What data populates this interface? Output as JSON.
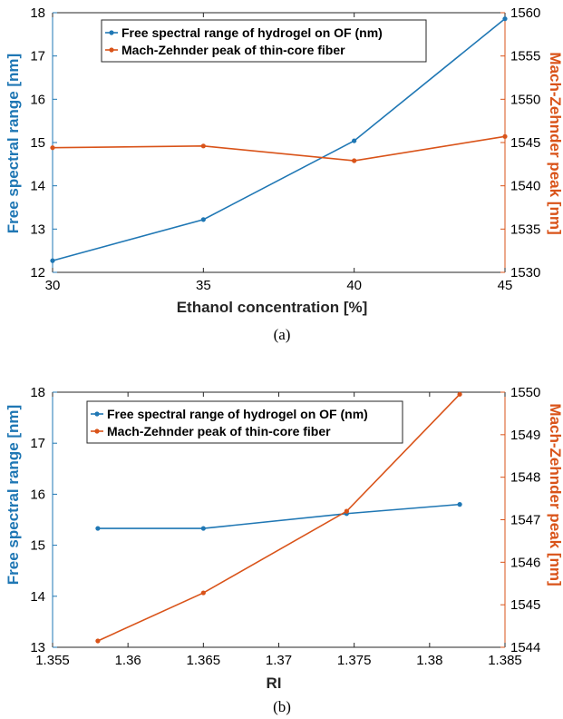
{
  "colors": {
    "blue": "#1f77b4",
    "orange": "#d95319",
    "axis": "#262626"
  },
  "chart_data": [
    {
      "type": "line",
      "caption": "(a)",
      "xlabel": "Ethanol concentration [%]",
      "ylabel_left": "Free spectral range [nm]",
      "ylabel_right": "Mach-Zehnder peak [nm]",
      "xlim": [
        30,
        45
      ],
      "ylim_left": [
        12,
        18
      ],
      "ylim_right": [
        1530,
        1560
      ],
      "x_ticks": [
        "30",
        "35",
        "40",
        "45"
      ],
      "y_ticks_left": [
        "12",
        "13",
        "14",
        "15",
        "16",
        "17",
        "18"
      ],
      "y_ticks_right": [
        "1530",
        "1535",
        "1540",
        "1545",
        "1550",
        "1555",
        "1560"
      ],
      "grid": false,
      "legend_position": "top",
      "series": [
        {
          "name": "Free spectral range of hydrogel on OF (nm)",
          "axis": "left",
          "color": "#1f77b4",
          "x": [
            30,
            35,
            40,
            45
          ],
          "y": [
            12.27,
            13.22,
            15.04,
            17.86
          ]
        },
        {
          "name": "Mach-Zehnder peak of thin-core fiber",
          "axis": "right",
          "color": "#d95319",
          "x": [
            30,
            35,
            40,
            45
          ],
          "y": [
            1544.4,
            1544.6,
            1542.9,
            1545.7
          ]
        }
      ]
    },
    {
      "type": "line",
      "caption": "(b)",
      "xlabel": "RI",
      "ylabel_left": "Free spectral range [nm]",
      "ylabel_right": "Mach-Zehnder peak [nm]",
      "xlim": [
        1.355,
        1.385
      ],
      "ylim_left": [
        13,
        18
      ],
      "ylim_right": [
        1544,
        1550
      ],
      "x_ticks": [
        "1.355",
        "1.36",
        "1.365",
        "1.37",
        "1.375",
        "1.38",
        "1.385"
      ],
      "y_ticks_left": [
        "13",
        "14",
        "15",
        "16",
        "17",
        "18"
      ],
      "y_ticks_right": [
        "1544",
        "1545",
        "1546",
        "1547",
        "1548",
        "1549",
        "1550"
      ],
      "grid": false,
      "legend_position": "top",
      "series": [
        {
          "name": "Free spectral range of hydrogel on OF (nm)",
          "axis": "left",
          "color": "#1f77b4",
          "x": [
            1.358,
            1.365,
            1.3745,
            1.382
          ],
          "y": [
            15.33,
            15.33,
            15.62,
            15.8
          ]
        },
        {
          "name": "Mach-Zehnder peak of thin-core fiber",
          "axis": "right",
          "color": "#d95319",
          "x": [
            1.358,
            1.365,
            1.3745,
            1.382
          ],
          "y": [
            1544.15,
            1545.28,
            1547.2,
            1549.95
          ]
        }
      ]
    }
  ]
}
